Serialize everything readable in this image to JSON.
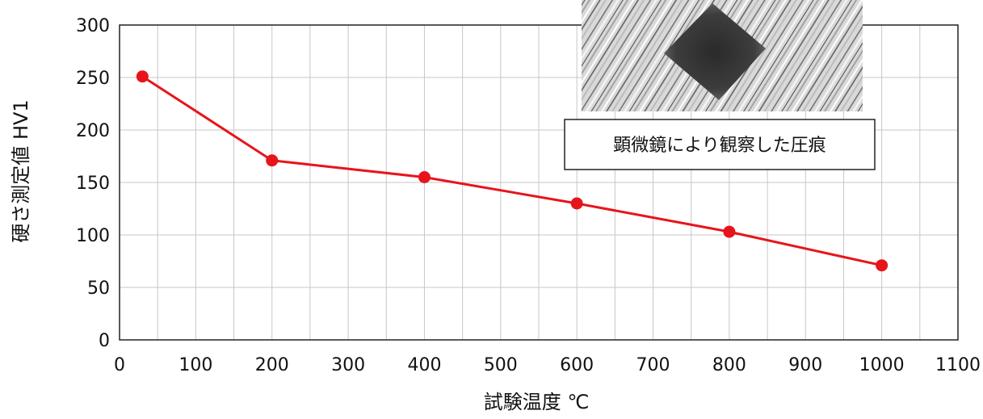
{
  "chart_data": {
    "type": "line",
    "xlabel": "試験温度 ℃",
    "ylabel": "硬さ測定値 HV1",
    "xlim": [
      0,
      1100
    ],
    "ylim": [
      0,
      300
    ],
    "x_ticks": [
      "0",
      "100",
      "200",
      "300",
      "400",
      "500",
      "600",
      "700",
      "800",
      "900",
      "1000",
      "1100"
    ],
    "y_ticks": [
      "0",
      "50",
      "100",
      "150",
      "200",
      "250",
      "300"
    ],
    "grid": true,
    "series": [
      {
        "x": [
          30,
          200,
          400,
          600,
          800,
          1000
        ],
        "y": [
          251,
          171,
          155,
          130,
          103,
          71
        ]
      }
    ],
    "annotation": "顕微鏡により観察した圧痕"
  },
  "colors": {
    "series": "#e8141b",
    "grid": "#c7c7c7",
    "axis": "#222222"
  }
}
